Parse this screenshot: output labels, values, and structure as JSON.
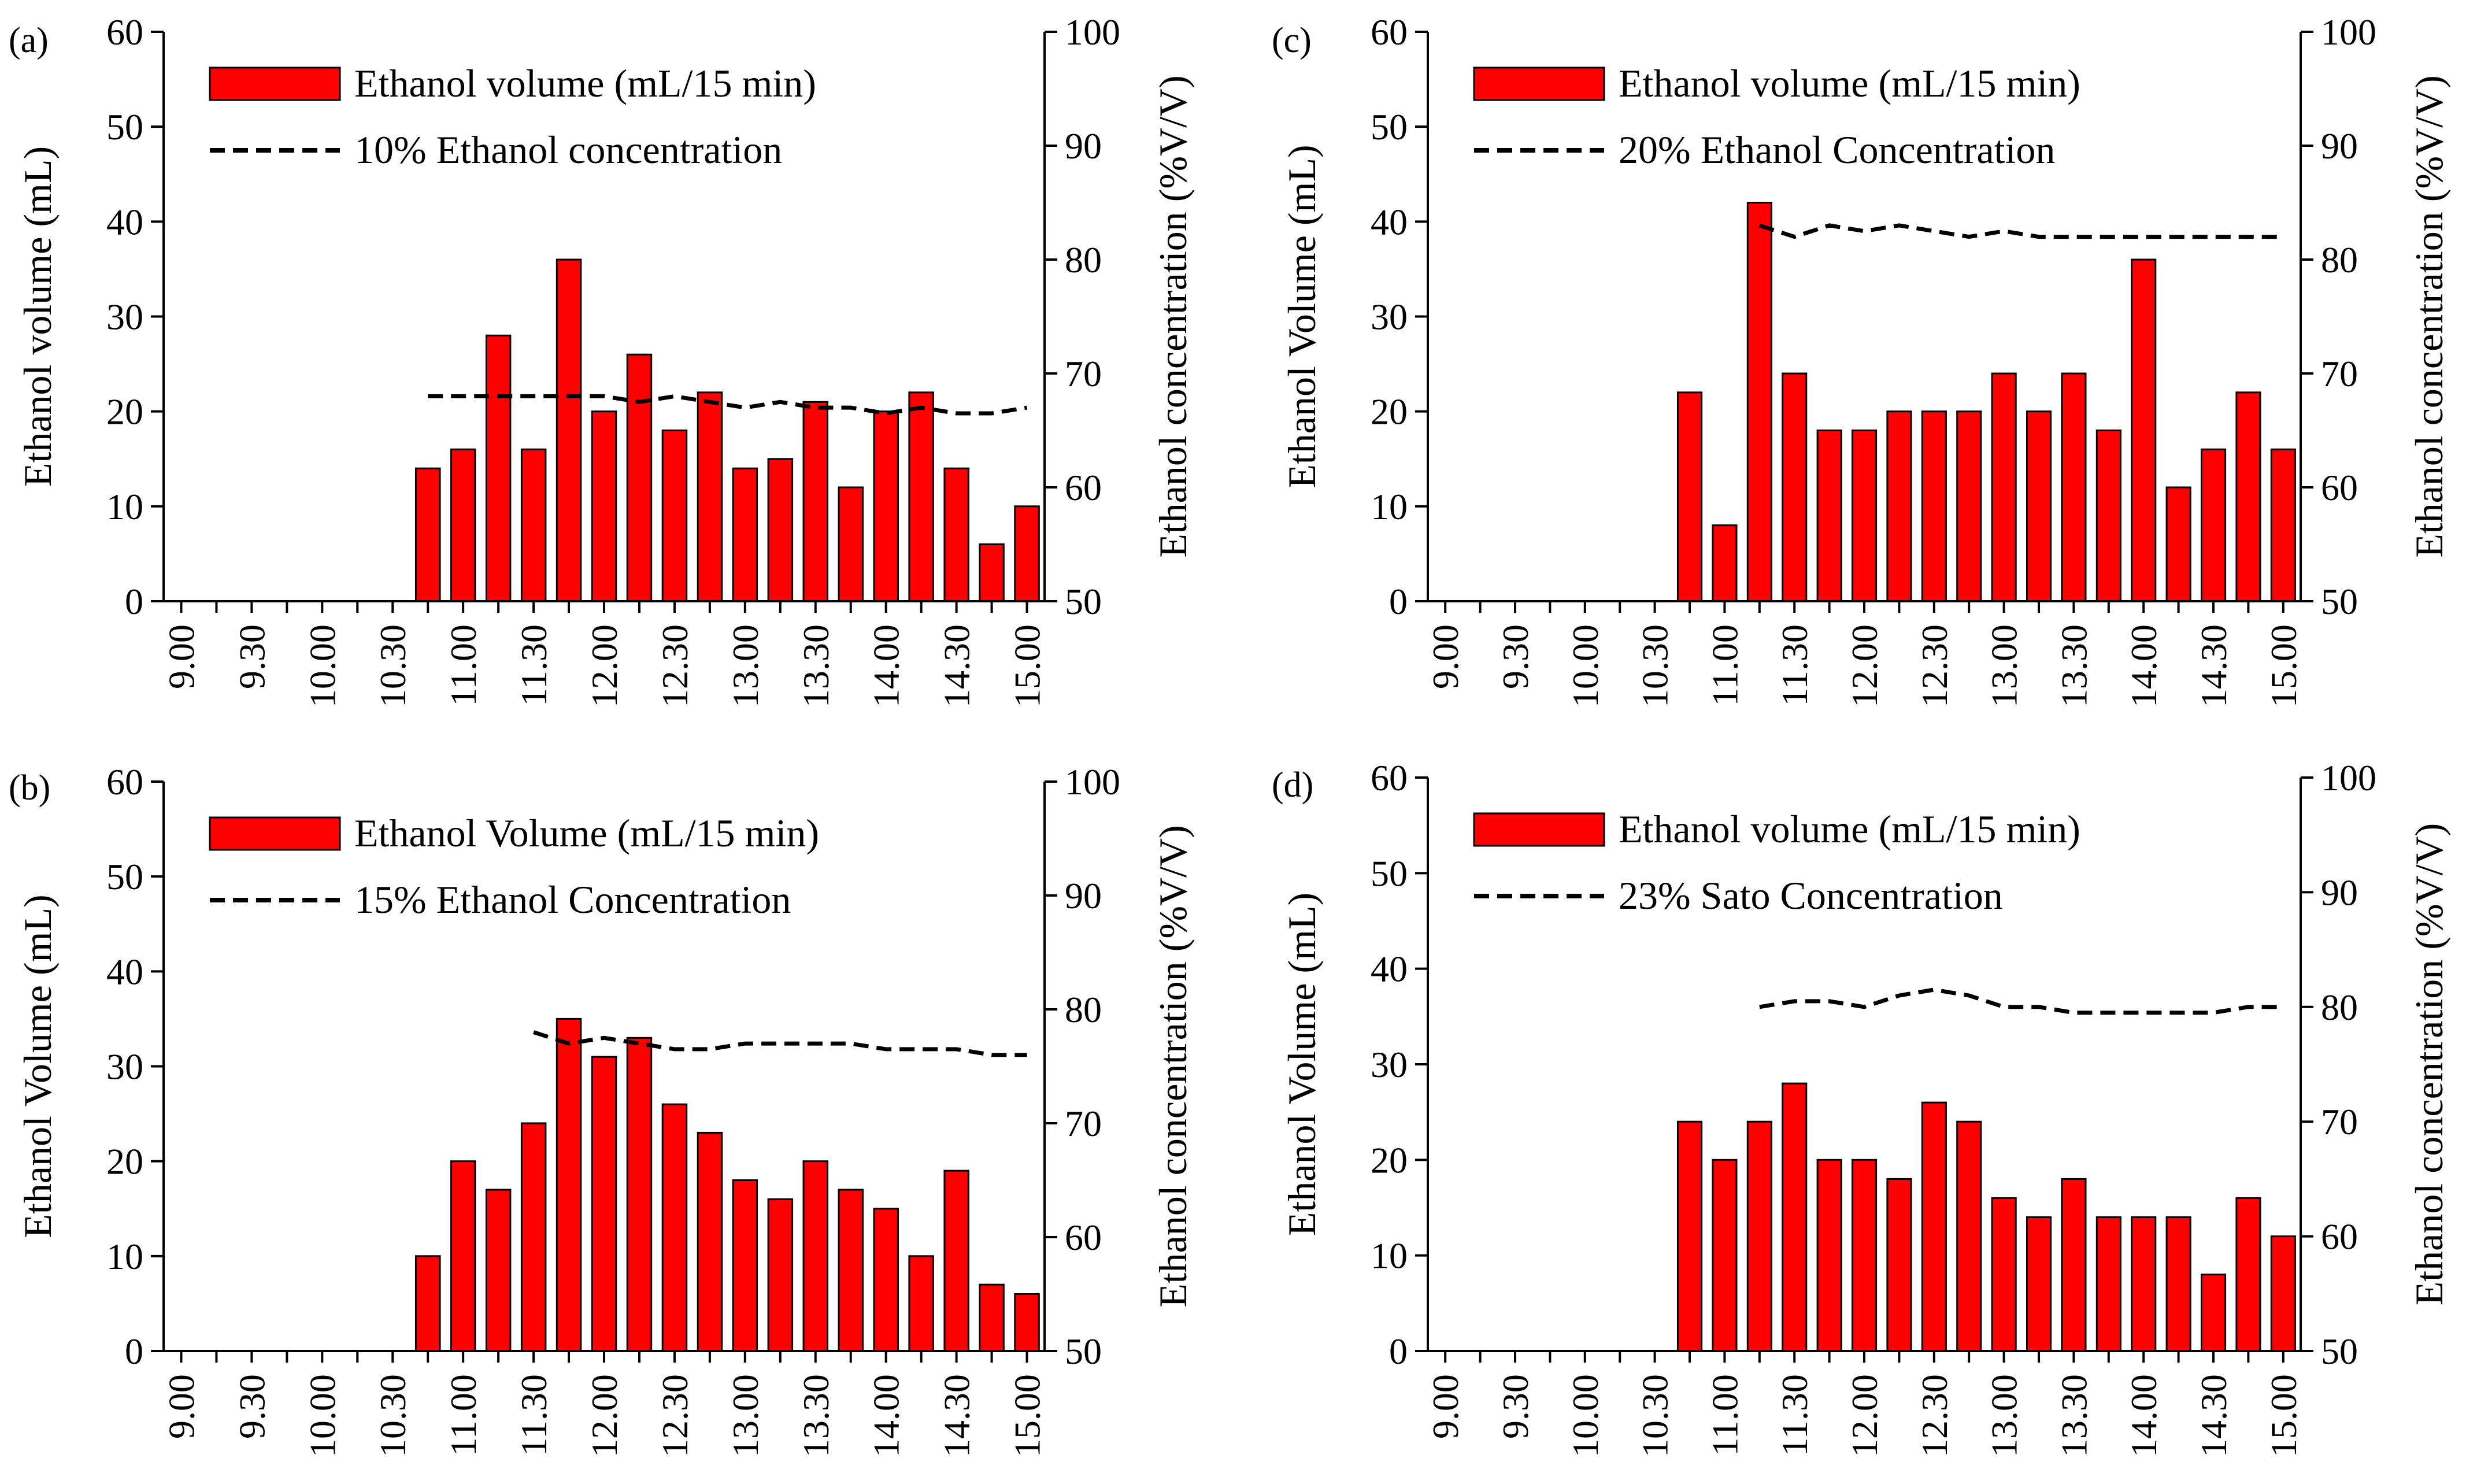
{
  "figure": {
    "x_tick_labels": [
      "9.00",
      "9.30",
      "10.00",
      "10.30",
      "11.00",
      "11.30",
      "12.00",
      "12.30",
      "13.00",
      "13.30",
      "14.00",
      "14.30",
      "15.00"
    ]
  },
  "chart_data": [
    {
      "panel": "(a)",
      "type": "bar",
      "ylabel": "Ethanol volume (mL)",
      "y2label": "Ethanol concentration (%V/V)",
      "ylim": [
        0,
        60
      ],
      "y2lim": [
        50,
        100
      ],
      "yticks": [
        "0",
        "10",
        "20",
        "30",
        "40",
        "50",
        "60"
      ],
      "y2ticks": [
        "50",
        "60",
        "70",
        "80",
        "90",
        "100"
      ],
      "legend_bar": "Ethanol volume (mL/15 min)",
      "legend_line": "10% Ethanol concentration",
      "x": [
        "9.00",
        "9.15",
        "9.30",
        "9.45",
        "10.00",
        "10.15",
        "10.30",
        "10.45",
        "11.00",
        "11.15",
        "11.30",
        "11.45",
        "12.00",
        "12.15",
        "12.30",
        "12.45",
        "13.00",
        "13.15",
        "13.30",
        "13.45",
        "14.00",
        "14.15",
        "14.30",
        "14.45",
        "15.00"
      ],
      "values": [
        0,
        0,
        0,
        0,
        0,
        0,
        0,
        14,
        16,
        28,
        16,
        36,
        20,
        26,
        18,
        22,
        14,
        15,
        21,
        12,
        20,
        22,
        14,
        6,
        10
      ],
      "concentration": [
        null,
        null,
        null,
        null,
        null,
        null,
        null,
        68,
        68,
        68,
        68,
        68,
        68,
        67.5,
        68,
        67.5,
        67,
        67.5,
        67,
        67,
        66.5,
        67,
        66.5,
        66.5,
        67
      ]
    },
    {
      "panel": "(b)",
      "type": "bar",
      "ylabel": "Ethanol Volume (mL)",
      "y2label": "Ethanol concentration (%V/V)",
      "ylim": [
        0,
        60
      ],
      "y2lim": [
        50,
        100
      ],
      "yticks": [
        "0",
        "10",
        "20",
        "30",
        "40",
        "50",
        "60"
      ],
      "y2ticks": [
        "50",
        "60",
        "70",
        "80",
        "90",
        "100"
      ],
      "legend_bar": "Ethanol Volume (mL/15 min)",
      "legend_line": "15% Ethanol Concentration",
      "x": [
        "9.00",
        "9.15",
        "9.30",
        "9.45",
        "10.00",
        "10.15",
        "10.30",
        "10.45",
        "11.00",
        "11.15",
        "11.30",
        "11.45",
        "12.00",
        "12.15",
        "12.30",
        "12.45",
        "13.00",
        "13.15",
        "13.30",
        "13.45",
        "14.00",
        "14.15",
        "14.30",
        "14.45",
        "15.00"
      ],
      "values": [
        0,
        0,
        0,
        0,
        0,
        0,
        0,
        10,
        20,
        17,
        24,
        35,
        31,
        33,
        26,
        23,
        18,
        16,
        20,
        17,
        15,
        10,
        19,
        7,
        6
      ],
      "concentration": [
        null,
        null,
        null,
        null,
        null,
        null,
        null,
        null,
        null,
        null,
        78,
        77,
        77.5,
        77,
        76.5,
        76.5,
        77,
        77,
        77,
        77,
        76.5,
        76.5,
        76.5,
        76,
        76
      ]
    },
    {
      "panel": "(c)",
      "type": "bar",
      "ylabel": "Ethanol Volume (mL)",
      "y2label": "Ethanol concentration (%V/V)",
      "ylim": [
        0,
        60
      ],
      "y2lim": [
        50,
        100
      ],
      "yticks": [
        "0",
        "10",
        "20",
        "30",
        "40",
        "50",
        "60"
      ],
      "y2ticks": [
        "50",
        "60",
        "70",
        "80",
        "90",
        "100"
      ],
      "legend_bar": "Ethanol volume (mL/15 min)",
      "legend_line": "20% Ethanol Concentration",
      "x": [
        "9.00",
        "9.15",
        "9.30",
        "9.45",
        "10.00",
        "10.15",
        "10.30",
        "10.45",
        "11.00",
        "11.15",
        "11.30",
        "11.45",
        "12.00",
        "12.15",
        "12.30",
        "12.45",
        "13.00",
        "13.15",
        "13.30",
        "13.45",
        "14.00",
        "14.15",
        "14.30",
        "14.45",
        "15.00"
      ],
      "values": [
        0,
        0,
        0,
        0,
        0,
        0,
        0,
        22,
        8,
        42,
        24,
        18,
        18,
        20,
        20,
        20,
        24,
        20,
        24,
        18,
        36,
        12,
        16,
        22,
        16
      ],
      "concentration": [
        null,
        null,
        null,
        null,
        null,
        null,
        null,
        null,
        null,
        83,
        82,
        83,
        82.5,
        83,
        82.5,
        82,
        82.5,
        82,
        82,
        82,
        82,
        82,
        82,
        82,
        82
      ]
    },
    {
      "panel": "(d)",
      "type": "bar",
      "ylabel": "Ethanol Volume (mL)",
      "y2label": "Ethanol concentration (%V/V)",
      "ylim": [
        0,
        60
      ],
      "y2lim": [
        50,
        100
      ],
      "yticks": [
        "0",
        "10",
        "20",
        "30",
        "40",
        "50",
        "60"
      ],
      "y2ticks": [
        "50",
        "60",
        "70",
        "80",
        "90",
        "100"
      ],
      "legend_bar": "Ethanol volume (mL/15 min)",
      "legend_line": "23% Sato Concentration",
      "x": [
        "9.00",
        "9.15",
        "9.30",
        "9.45",
        "10.00",
        "10.15",
        "10.30",
        "10.45",
        "11.00",
        "11.15",
        "11.30",
        "11.45",
        "12.00",
        "12.15",
        "12.30",
        "12.45",
        "13.00",
        "13.15",
        "13.30",
        "13.45",
        "14.00",
        "14.15",
        "14.30",
        "14.45",
        "15.00"
      ],
      "values": [
        0,
        0,
        0,
        0,
        0,
        0,
        0,
        24,
        20,
        24,
        28,
        20,
        20,
        18,
        26,
        24,
        16,
        14,
        18,
        14,
        14,
        14,
        8,
        16,
        12
      ],
      "concentration": [
        null,
        null,
        null,
        null,
        null,
        null,
        null,
        null,
        null,
        80,
        80.5,
        80.5,
        80,
        81,
        81.5,
        81,
        80,
        80,
        79.5,
        79.5,
        79.5,
        79.5,
        79.5,
        80,
        80
      ]
    }
  ],
  "colors": {
    "bar": "#ff0000",
    "bar_edge": "#000000",
    "line": "#000000",
    "axis": "#000000"
  }
}
